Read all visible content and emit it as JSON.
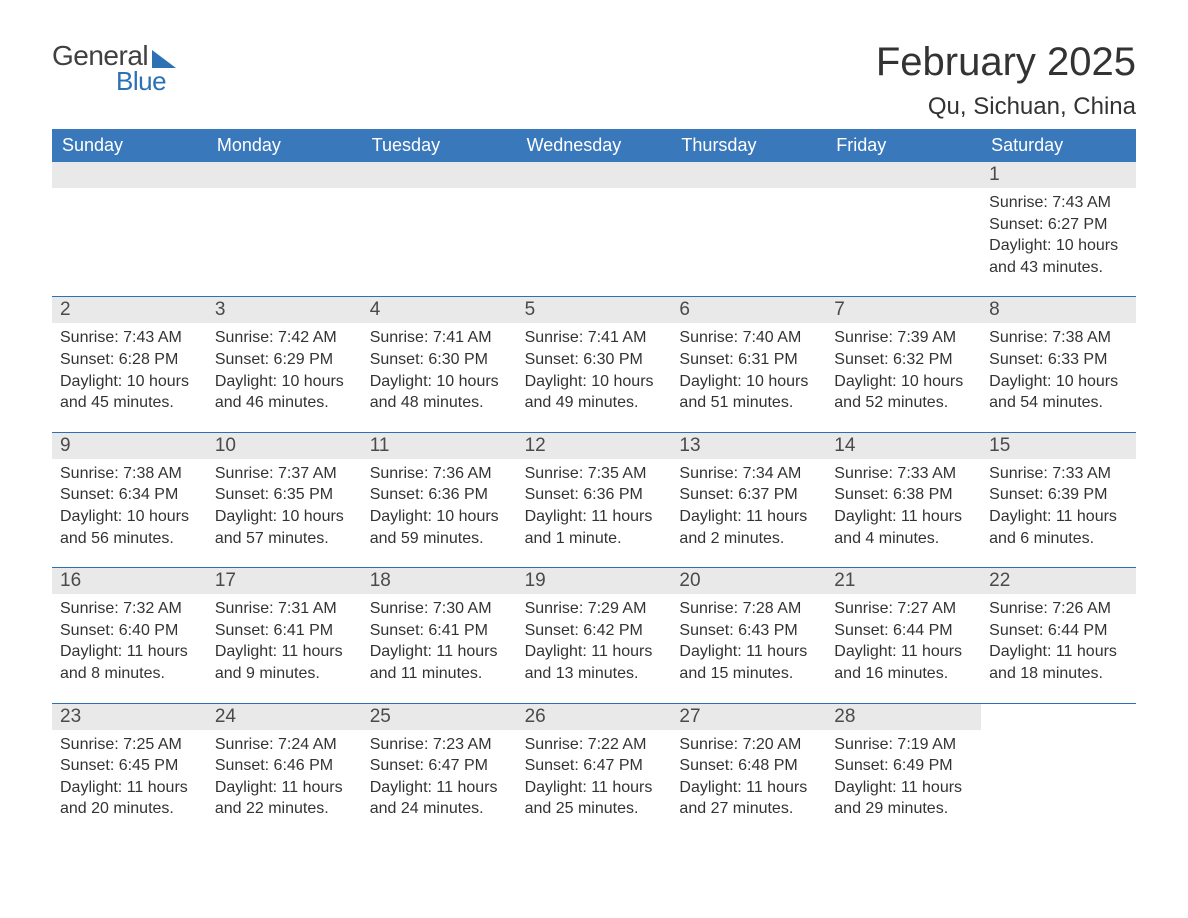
{
  "logo": {
    "word1": "General",
    "word2": "Blue",
    "colors": {
      "word1": "#404040",
      "word2": "#2c71b4",
      "triangle": "#2c71b4"
    }
  },
  "title": "February 2025",
  "location": "Qu, Sichuan, China",
  "weekdays": [
    "Sunday",
    "Monday",
    "Tuesday",
    "Wednesday",
    "Thursday",
    "Friday",
    "Saturday"
  ],
  "colors": {
    "header_bg": "#3a78bc",
    "header_text": "#ffffff",
    "row_border": "#2c71b4",
    "daynum_bg": "#e9e9e9",
    "text": "#333333",
    "daynum_text": "#4a4a4a",
    "page_bg": "#ffffff"
  },
  "typography": {
    "title_fontsize": 40,
    "location_fontsize": 24,
    "weekday_fontsize": 18,
    "daynum_fontsize": 19,
    "content_fontsize": 16
  },
  "weeks": [
    [
      {
        "day": "",
        "sunrise": "",
        "sunset": "",
        "daylight": ""
      },
      {
        "day": "",
        "sunrise": "",
        "sunset": "",
        "daylight": ""
      },
      {
        "day": "",
        "sunrise": "",
        "sunset": "",
        "daylight": ""
      },
      {
        "day": "",
        "sunrise": "",
        "sunset": "",
        "daylight": ""
      },
      {
        "day": "",
        "sunrise": "",
        "sunset": "",
        "daylight": ""
      },
      {
        "day": "",
        "sunrise": "",
        "sunset": "",
        "daylight": ""
      },
      {
        "day": "1",
        "sunrise": "Sunrise: 7:43 AM",
        "sunset": "Sunset: 6:27 PM",
        "daylight": "Daylight: 10 hours and 43 minutes."
      }
    ],
    [
      {
        "day": "2",
        "sunrise": "Sunrise: 7:43 AM",
        "sunset": "Sunset: 6:28 PM",
        "daylight": "Daylight: 10 hours and 45 minutes."
      },
      {
        "day": "3",
        "sunrise": "Sunrise: 7:42 AM",
        "sunset": "Sunset: 6:29 PM",
        "daylight": "Daylight: 10 hours and 46 minutes."
      },
      {
        "day": "4",
        "sunrise": "Sunrise: 7:41 AM",
        "sunset": "Sunset: 6:30 PM",
        "daylight": "Daylight: 10 hours and 48 minutes."
      },
      {
        "day": "5",
        "sunrise": "Sunrise: 7:41 AM",
        "sunset": "Sunset: 6:30 PM",
        "daylight": "Daylight: 10 hours and 49 minutes."
      },
      {
        "day": "6",
        "sunrise": "Sunrise: 7:40 AM",
        "sunset": "Sunset: 6:31 PM",
        "daylight": "Daylight: 10 hours and 51 minutes."
      },
      {
        "day": "7",
        "sunrise": "Sunrise: 7:39 AM",
        "sunset": "Sunset: 6:32 PM",
        "daylight": "Daylight: 10 hours and 52 minutes."
      },
      {
        "day": "8",
        "sunrise": "Sunrise: 7:38 AM",
        "sunset": "Sunset: 6:33 PM",
        "daylight": "Daylight: 10 hours and 54 minutes."
      }
    ],
    [
      {
        "day": "9",
        "sunrise": "Sunrise: 7:38 AM",
        "sunset": "Sunset: 6:34 PM",
        "daylight": "Daylight: 10 hours and 56 minutes."
      },
      {
        "day": "10",
        "sunrise": "Sunrise: 7:37 AM",
        "sunset": "Sunset: 6:35 PM",
        "daylight": "Daylight: 10 hours and 57 minutes."
      },
      {
        "day": "11",
        "sunrise": "Sunrise: 7:36 AM",
        "sunset": "Sunset: 6:36 PM",
        "daylight": "Daylight: 10 hours and 59 minutes."
      },
      {
        "day": "12",
        "sunrise": "Sunrise: 7:35 AM",
        "sunset": "Sunset: 6:36 PM",
        "daylight": "Daylight: 11 hours and 1 minute."
      },
      {
        "day": "13",
        "sunrise": "Sunrise: 7:34 AM",
        "sunset": "Sunset: 6:37 PM",
        "daylight": "Daylight: 11 hours and 2 minutes."
      },
      {
        "day": "14",
        "sunrise": "Sunrise: 7:33 AM",
        "sunset": "Sunset: 6:38 PM",
        "daylight": "Daylight: 11 hours and 4 minutes."
      },
      {
        "day": "15",
        "sunrise": "Sunrise: 7:33 AM",
        "sunset": "Sunset: 6:39 PM",
        "daylight": "Daylight: 11 hours and 6 minutes."
      }
    ],
    [
      {
        "day": "16",
        "sunrise": "Sunrise: 7:32 AM",
        "sunset": "Sunset: 6:40 PM",
        "daylight": "Daylight: 11 hours and 8 minutes."
      },
      {
        "day": "17",
        "sunrise": "Sunrise: 7:31 AM",
        "sunset": "Sunset: 6:41 PM",
        "daylight": "Daylight: 11 hours and 9 minutes."
      },
      {
        "day": "18",
        "sunrise": "Sunrise: 7:30 AM",
        "sunset": "Sunset: 6:41 PM",
        "daylight": "Daylight: 11 hours and 11 minutes."
      },
      {
        "day": "19",
        "sunrise": "Sunrise: 7:29 AM",
        "sunset": "Sunset: 6:42 PM",
        "daylight": "Daylight: 11 hours and 13 minutes."
      },
      {
        "day": "20",
        "sunrise": "Sunrise: 7:28 AM",
        "sunset": "Sunset: 6:43 PM",
        "daylight": "Daylight: 11 hours and 15 minutes."
      },
      {
        "day": "21",
        "sunrise": "Sunrise: 7:27 AM",
        "sunset": "Sunset: 6:44 PM",
        "daylight": "Daylight: 11 hours and 16 minutes."
      },
      {
        "day": "22",
        "sunrise": "Sunrise: 7:26 AM",
        "sunset": "Sunset: 6:44 PM",
        "daylight": "Daylight: 11 hours and 18 minutes."
      }
    ],
    [
      {
        "day": "23",
        "sunrise": "Sunrise: 7:25 AM",
        "sunset": "Sunset: 6:45 PM",
        "daylight": "Daylight: 11 hours and 20 minutes."
      },
      {
        "day": "24",
        "sunrise": "Sunrise: 7:24 AM",
        "sunset": "Sunset: 6:46 PM",
        "daylight": "Daylight: 11 hours and 22 minutes."
      },
      {
        "day": "25",
        "sunrise": "Sunrise: 7:23 AM",
        "sunset": "Sunset: 6:47 PM",
        "daylight": "Daylight: 11 hours and 24 minutes."
      },
      {
        "day": "26",
        "sunrise": "Sunrise: 7:22 AM",
        "sunset": "Sunset: 6:47 PM",
        "daylight": "Daylight: 11 hours and 25 minutes."
      },
      {
        "day": "27",
        "sunrise": "Sunrise: 7:20 AM",
        "sunset": "Sunset: 6:48 PM",
        "daylight": "Daylight: 11 hours and 27 minutes."
      },
      {
        "day": "28",
        "sunrise": "Sunrise: 7:19 AM",
        "sunset": "Sunset: 6:49 PM",
        "daylight": "Daylight: 11 hours and 29 minutes."
      },
      {
        "day": "",
        "sunrise": "",
        "sunset": "",
        "daylight": ""
      }
    ]
  ]
}
